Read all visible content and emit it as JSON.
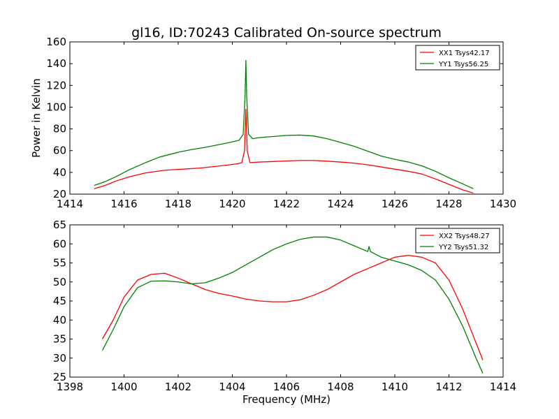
{
  "figure": {
    "title": "gl16, ID:70243 Calibrated On-source spectrum",
    "background": "#ffffff"
  },
  "chart_data": [
    {
      "type": "line",
      "title": "gl16, ID:70243 Calibrated On-source spectrum",
      "xlabel": "",
      "ylabel": "Power in Kelvin",
      "xlim": [
        1414,
        1430
      ],
      "ylim": [
        20,
        160
      ],
      "xticks": [
        "1414",
        "1416",
        "1418",
        "1420",
        "1422",
        "1424",
        "1426",
        "1428",
        "1430"
      ],
      "yticks": [
        "20",
        "40",
        "60",
        "80",
        "100",
        "120",
        "140",
        "160"
      ],
      "grid": false,
      "legend_position": "top-right",
      "series": [
        {
          "name": "XX1 Tsys42.17",
          "color": "#ff0000",
          "points": [
            [
              1414.9,
              25
            ],
            [
              1415.3,
              28
            ],
            [
              1415.7,
              32
            ],
            [
              1416.2,
              36
            ],
            [
              1416.8,
              39.5
            ],
            [
              1417.5,
              42
            ],
            [
              1418.2,
              43
            ],
            [
              1418.8,
              44
            ],
            [
              1419.4,
              45.5
            ],
            [
              1419.9,
              47
            ],
            [
              1420.2,
              48
            ],
            [
              1420.35,
              49
            ],
            [
              1420.45,
              60
            ],
            [
              1420.5,
              98
            ],
            [
              1420.55,
              60
            ],
            [
              1420.65,
              49
            ],
            [
              1421,
              49.5
            ],
            [
              1421.5,
              50
            ],
            [
              1422,
              50.5
            ],
            [
              1422.5,
              51
            ],
            [
              1423,
              51
            ],
            [
              1423.5,
              50.3
            ],
            [
              1424,
              49.5
            ],
            [
              1424.5,
              48.5
            ],
            [
              1425,
              47
            ],
            [
              1425.5,
              45
            ],
            [
              1426,
              43
            ],
            [
              1426.5,
              41
            ],
            [
              1427,
              38.5
            ],
            [
              1427.5,
              34
            ],
            [
              1428,
              29
            ],
            [
              1428.5,
              24
            ],
            [
              1428.9,
              21
            ]
          ]
        },
        {
          "name": "YY1 Tsys56.25",
          "color": "#008000",
          "points": [
            [
              1414.9,
              28
            ],
            [
              1415.3,
              31.5
            ],
            [
              1415.7,
              36
            ],
            [
              1416.2,
              42.5
            ],
            [
              1416.8,
              49
            ],
            [
              1417.3,
              54
            ],
            [
              1418,
              58.5
            ],
            [
              1418.5,
              61
            ],
            [
              1419,
              63
            ],
            [
              1419.5,
              65.5
            ],
            [
              1419.9,
              67.5
            ],
            [
              1420.25,
              69.5
            ],
            [
              1420.4,
              75
            ],
            [
              1420.47,
              110
            ],
            [
              1420.5,
              143
            ],
            [
              1420.53,
              110
            ],
            [
              1420.6,
              75
            ],
            [
              1420.75,
              71
            ],
            [
              1421,
              72
            ],
            [
              1421.5,
              73
            ],
            [
              1422,
              74
            ],
            [
              1422.5,
              74.3
            ],
            [
              1423,
              73.5
            ],
            [
              1423.5,
              71
            ],
            [
              1424,
              67.5
            ],
            [
              1424.5,
              64
            ],
            [
              1425,
              59.5
            ],
            [
              1425.5,
              55
            ],
            [
              1426,
              52
            ],
            [
              1426.5,
              49.5
            ],
            [
              1427,
              46
            ],
            [
              1427.5,
              41
            ],
            [
              1428,
              35
            ],
            [
              1428.5,
              29.5
            ],
            [
              1428.9,
              25
            ]
          ]
        }
      ]
    },
    {
      "type": "line",
      "title": "",
      "xlabel": "Frequency (MHz)",
      "ylabel": "",
      "xlim": [
        1398,
        1414
      ],
      "ylim": [
        25,
        65
      ],
      "xticks": [
        "1398",
        "1400",
        "1402",
        "1404",
        "1406",
        "1408",
        "1410",
        "1412",
        "1414"
      ],
      "yticks": [
        "25",
        "30",
        "35",
        "40",
        "45",
        "50",
        "55",
        "60",
        "65"
      ],
      "grid": false,
      "legend_position": "top-right",
      "series": [
        {
          "name": "XX2 Tsys48.27",
          "color": "#ff0000",
          "points": [
            [
              1399.2,
              35
            ],
            [
              1399.6,
              40
            ],
            [
              1400,
              46
            ],
            [
              1400.5,
              50.5
            ],
            [
              1401,
              52
            ],
            [
              1401.5,
              52.3
            ],
            [
              1402,
              51
            ],
            [
              1402.5,
              49.5
            ],
            [
              1403,
              48
            ],
            [
              1403.5,
              47
            ],
            [
              1404,
              46.3
            ],
            [
              1404.5,
              45.5
            ],
            [
              1405,
              45
            ],
            [
              1405.5,
              44.8
            ],
            [
              1406,
              44.8
            ],
            [
              1406.5,
              45.3
            ],
            [
              1407,
              46.5
            ],
            [
              1407.5,
              48
            ],
            [
              1408,
              50
            ],
            [
              1408.5,
              52
            ],
            [
              1409,
              53.5
            ],
            [
              1409.5,
              55
            ],
            [
              1410,
              56.5
            ],
            [
              1410.5,
              57
            ],
            [
              1411,
              56.5
            ],
            [
              1411.5,
              55
            ],
            [
              1412,
              50.5
            ],
            [
              1412.5,
              43
            ],
            [
              1413,
              34
            ],
            [
              1413.25,
              29.5
            ]
          ]
        },
        {
          "name": "YY2 Tsys51.32",
          "color": "#008000",
          "points": [
            [
              1399.2,
              32
            ],
            [
              1399.6,
              37.5
            ],
            [
              1400,
              43.5
            ],
            [
              1400.5,
              48.5
            ],
            [
              1401,
              50.2
            ],
            [
              1401.5,
              50.3
            ],
            [
              1402,
              50
            ],
            [
              1402.5,
              49.5
            ],
            [
              1403,
              49.8
            ],
            [
              1403.5,
              51
            ],
            [
              1404,
              52.5
            ],
            [
              1404.5,
              54.5
            ],
            [
              1405,
              56.5
            ],
            [
              1405.5,
              58.5
            ],
            [
              1406,
              60
            ],
            [
              1406.5,
              61.2
            ],
            [
              1407,
              61.8
            ],
            [
              1407.5,
              61.8
            ],
            [
              1408,
              61
            ],
            [
              1408.5,
              59.5
            ],
            [
              1409,
              58
            ],
            [
              1409.05,
              59.3
            ],
            [
              1409.1,
              58
            ],
            [
              1409.5,
              56.5
            ],
            [
              1410,
              55.5
            ],
            [
              1410.5,
              54.5
            ],
            [
              1411,
              53
            ],
            [
              1411.5,
              50.5
            ],
            [
              1412,
              45.5
            ],
            [
              1412.5,
              38.5
            ],
            [
              1413,
              30
            ],
            [
              1413.25,
              26
            ]
          ]
        }
      ]
    }
  ]
}
